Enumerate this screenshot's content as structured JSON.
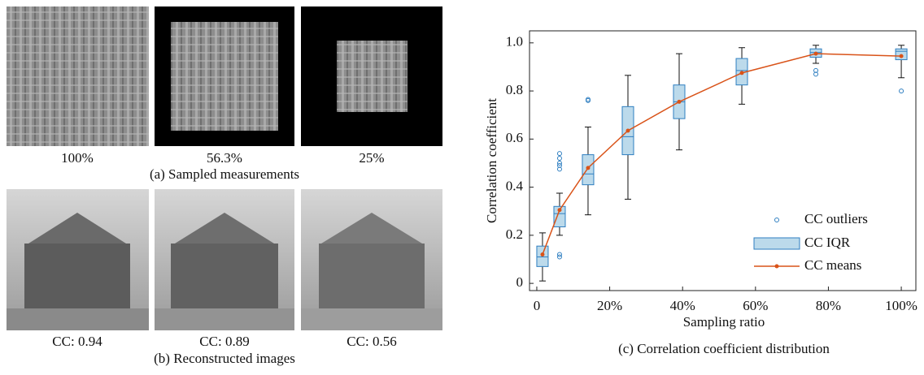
{
  "panel_a": {
    "labels": [
      "100%",
      "56.3%",
      "25%"
    ],
    "caption": "(a) Sampled measurements"
  },
  "panel_b": {
    "labels": [
      "CC: 0.94",
      "CC: 0.89",
      "CC: 0.56"
    ],
    "caption": "(b) Reconstructed images"
  },
  "chart_data": {
    "type": "box",
    "title": "(c) Correlation coefficient distribution",
    "x_label": "Sampling ratio",
    "y_label": "Correlation coefficient",
    "xlim": [
      -2,
      104
    ],
    "ylim": [
      -0.03,
      1.05
    ],
    "xticks": [
      0,
      {
        "value": 20,
        "label": "20%"
      },
      {
        "value": 40,
        "label": "40%"
      },
      {
        "value": 60,
        "label": "60%"
      },
      {
        "value": 80,
        "label": "80%"
      },
      {
        "value": 100,
        "label": "100%"
      }
    ],
    "yticks": [
      0,
      0.2,
      0.4,
      0.6,
      0.8,
      {
        "value": 1,
        "label": "1.0"
      }
    ],
    "box_color": "#2f7fc1",
    "box_fill": "#bcdaeb",
    "mean_color": "#d95319",
    "legend_labels": [
      "CC outliers",
      "CC IQR",
      "CC means"
    ],
    "legend_position": "lower right",
    "boxes": [
      {
        "x": 1.56,
        "whisker_low": 0.01,
        "q1": 0.07,
        "median": 0.11,
        "q3": 0.155,
        "whisker_high": 0.21,
        "outliers": []
      },
      {
        "x": 6.25,
        "whisker_low": 0.2,
        "q1": 0.235,
        "median": 0.29,
        "q3": 0.32,
        "whisker_high": 0.375,
        "outliers": [
          0.54,
          0.52,
          0.5,
          0.49,
          0.475,
          0.12,
          0.11
        ]
      },
      {
        "x": 14.06,
        "whisker_low": 0.285,
        "q1": 0.41,
        "median": 0.455,
        "q3": 0.535,
        "whisker_high": 0.65,
        "outliers": [
          0.765,
          0.76
        ]
      },
      {
        "x": 25,
        "whisker_low": 0.35,
        "q1": 0.535,
        "median": 0.61,
        "q3": 0.735,
        "whisker_high": 0.865,
        "outliers": []
      },
      {
        "x": 39.06,
        "whisker_low": 0.555,
        "q1": 0.685,
        "median": 0.755,
        "q3": 0.825,
        "whisker_high": 0.955,
        "outliers": []
      },
      {
        "x": 56.25,
        "whisker_low": 0.745,
        "q1": 0.825,
        "median": 0.885,
        "q3": 0.935,
        "whisker_high": 0.98,
        "outliers": []
      },
      {
        "x": 76.56,
        "whisker_low": 0.915,
        "q1": 0.94,
        "median": 0.96,
        "q3": 0.975,
        "whisker_high": 0.99,
        "outliers": [
          0.885,
          0.87
        ]
      },
      {
        "x": 100,
        "whisker_low": 0.855,
        "q1": 0.93,
        "median": 0.965,
        "q3": 0.975,
        "whisker_high": 0.99,
        "outliers": [
          0.8
        ]
      }
    ],
    "means": [
      0.12,
      0.305,
      0.48,
      0.635,
      0.755,
      0.875,
      0.955,
      0.945
    ]
  }
}
